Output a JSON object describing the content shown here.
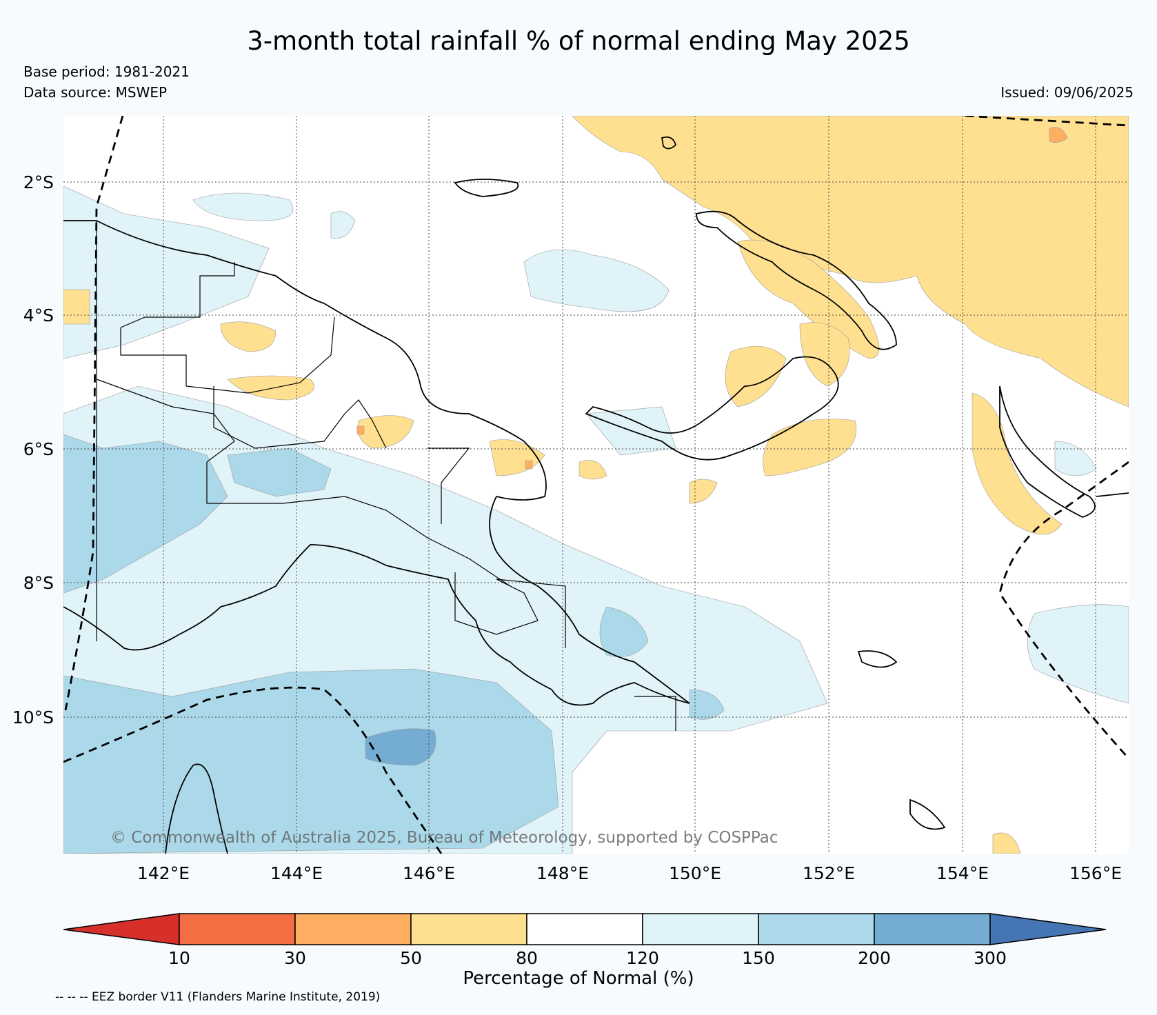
{
  "title": "3-month total rainfall % of normal ending May 2025",
  "base_period": "Base period: 1981-2021",
  "data_source": "Data source: MSWEP",
  "issued": "Issued: 09/06/2025",
  "copyright": "© Commonwealth of Australia 2025, Bureau of Meteorology, supported by COSPPac",
  "map": {
    "lat_labels": [
      "2°S",
      "4°S",
      "6°S",
      "8°S",
      "10°S"
    ],
    "lon_labels": [
      "142°E",
      "144°E",
      "146°E",
      "148°E",
      "150°E",
      "152°E",
      "154°E",
      "156°E"
    ]
  },
  "colorbar": {
    "label": "Percentage of Normal (%)",
    "ticks": [
      "10",
      "30",
      "50",
      "80",
      "120",
      "150",
      "200",
      "300"
    ],
    "colors": [
      "#d7302a",
      "#f46d43",
      "#fdae61",
      "#fee090",
      "#ffffff",
      "#e0f3f8",
      "#abd9e9",
      "#74add1",
      "#4575b4"
    ]
  },
  "eez_note": "-- -- -- EEZ border V11 (Flanders Marine Institute, 2019)"
}
